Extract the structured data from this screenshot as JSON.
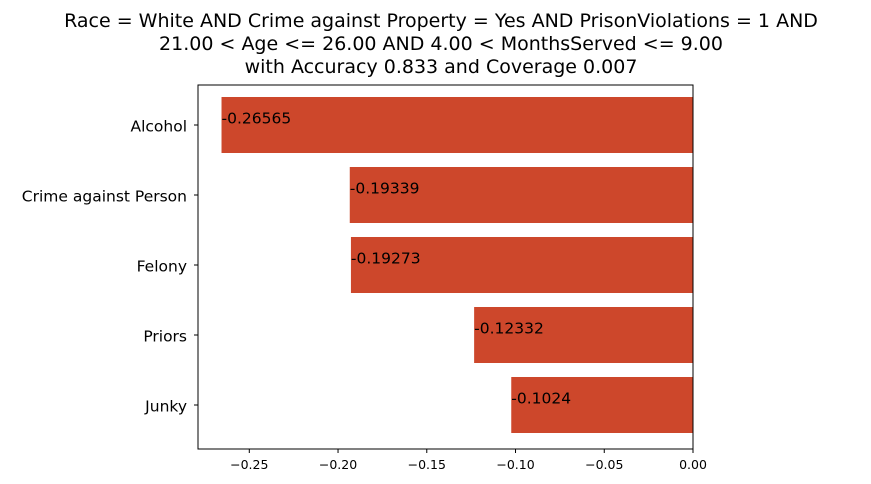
{
  "chart_data": {
    "type": "bar",
    "orientation": "horizontal",
    "title_lines": [
      "Race = White AND Crime against Property = Yes AND PrisonViolations = 1 AND",
      "21.00 < Age <= 26.00 AND 4.00 < MonthsServed <= 9.00",
      "with Accuracy 0.833 and Coverage 0.007"
    ],
    "categories": [
      "Alcohol",
      "Crime against Person",
      "Felony",
      "Priors",
      "Junky"
    ],
    "values": [
      -0.26565,
      -0.19339,
      -0.19273,
      -0.12332,
      -0.1024
    ],
    "value_labels": [
      "-0.26565",
      "-0.19339",
      "-0.19273",
      "-0.12332",
      "-0.1024"
    ],
    "xticks": [
      -0.25,
      -0.2,
      -0.15,
      -0.1,
      -0.05,
      0.0
    ],
    "xtick_labels": [
      "−0.25",
      "−0.20",
      "−0.15",
      "−0.10",
      "−0.05",
      "0.00"
    ],
    "xlim": [
      -0.2789,
      0.0
    ],
    "xlabel": "",
    "ylabel": "",
    "bar_color": "#cd472b",
    "grid": false
  }
}
